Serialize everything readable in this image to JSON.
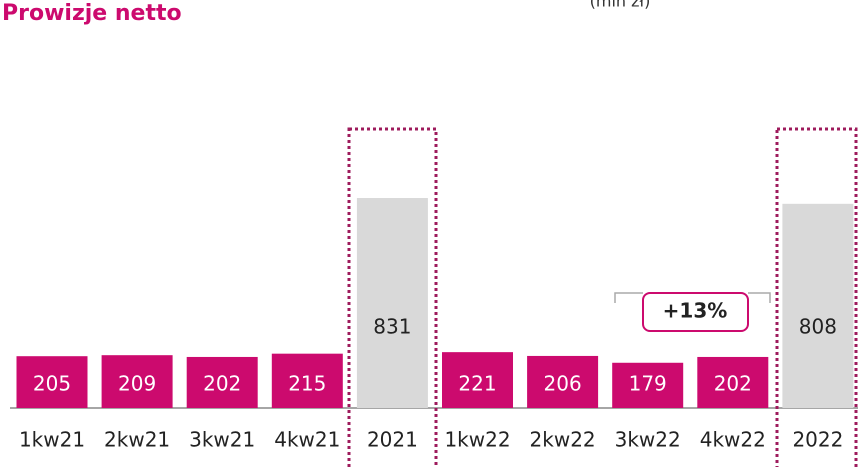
{
  "chart_data": {
    "type": "bar",
    "title": "Prowizje netto",
    "subtitle": "(mln zł)",
    "categories": [
      "1kw21",
      "2kw21",
      "3kw21",
      "4kw21",
      "2021",
      "1kw22",
      "2kw22",
      "3kw22",
      "4kw22",
      "2022"
    ],
    "values": [
      205,
      209,
      202,
      215,
      831,
      221,
      206,
      179,
      202,
      808
    ],
    "colors": [
      "#cc0a6e",
      "#cc0a6e",
      "#cc0a6e",
      "#cc0a6e",
      "#d9d9d9",
      "#cc0a6e",
      "#cc0a6e",
      "#cc0a6e",
      "#cc0a6e",
      "#d9d9d9"
    ],
    "annotation": "+13%"
  }
}
